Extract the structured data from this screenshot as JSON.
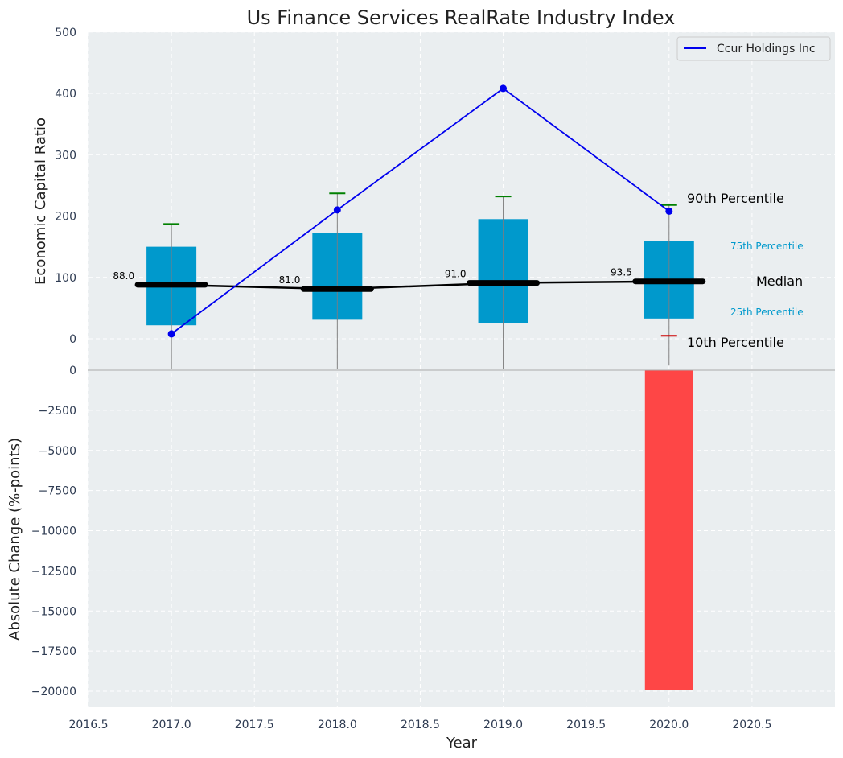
{
  "chart_data": [
    {
      "type": "box",
      "title": "Us Finance Services RealRate Industry Index",
      "ylabel": "Economic Capital Ratio",
      "xlabel": "",
      "x": [
        2017,
        2018,
        2019,
        2020
      ],
      "xlim": [
        2016.5,
        2021.0
      ],
      "ylim": [
        -50,
        500
      ],
      "yticks": [
        0,
        100,
        200,
        300,
        400,
        500
      ],
      "grid": true,
      "percentiles": {
        "p10": [
          0,
          0,
          0,
          5
        ],
        "p25": [
          22,
          31,
          25,
          33
        ],
        "median": [
          88.0,
          81.0,
          91.0,
          93.5
        ],
        "p75": [
          150,
          172,
          195,
          159
        ],
        "p90": [
          187,
          237,
          232,
          218
        ]
      },
      "median_labels": [
        "88.0",
        "81.0",
        "91.0",
        "93.5"
      ],
      "series": [
        {
          "name": "Ccur Holdings Inc",
          "values": [
            8,
            210,
            408,
            208
          ],
          "color": "#0000ee"
        }
      ],
      "legend": {
        "position": "top-right",
        "entries": [
          "Ccur Holdings Inc"
        ]
      },
      "annotations": {
        "p90": "90th Percentile",
        "p75": "75th Percentile",
        "median": "Median",
        "p25": "25th Percentile",
        "p10": "10th Percentile"
      },
      "colors": {
        "box": "#0099cc",
        "median": "#000000",
        "p90": "#008000",
        "p10": "#cc0000",
        "background": "#eaeef0"
      }
    },
    {
      "type": "bar",
      "ylabel": "Absolute Change (%-points)",
      "xlabel": "Year",
      "x": [
        2020
      ],
      "values": [
        -19950
      ],
      "ylim": [
        -21000,
        0
      ],
      "yticks": [
        0,
        -2500,
        -5000,
        -7500,
        -10000,
        -12500,
        -15000,
        -17500,
        -20000
      ],
      "xticks": [
        2016.5,
        2017.0,
        2017.5,
        2018.0,
        2018.5,
        2019.0,
        2019.5,
        2020.0,
        2020.5
      ],
      "grid": true,
      "colors": {
        "bar": "#ff3c3c"
      }
    }
  ]
}
